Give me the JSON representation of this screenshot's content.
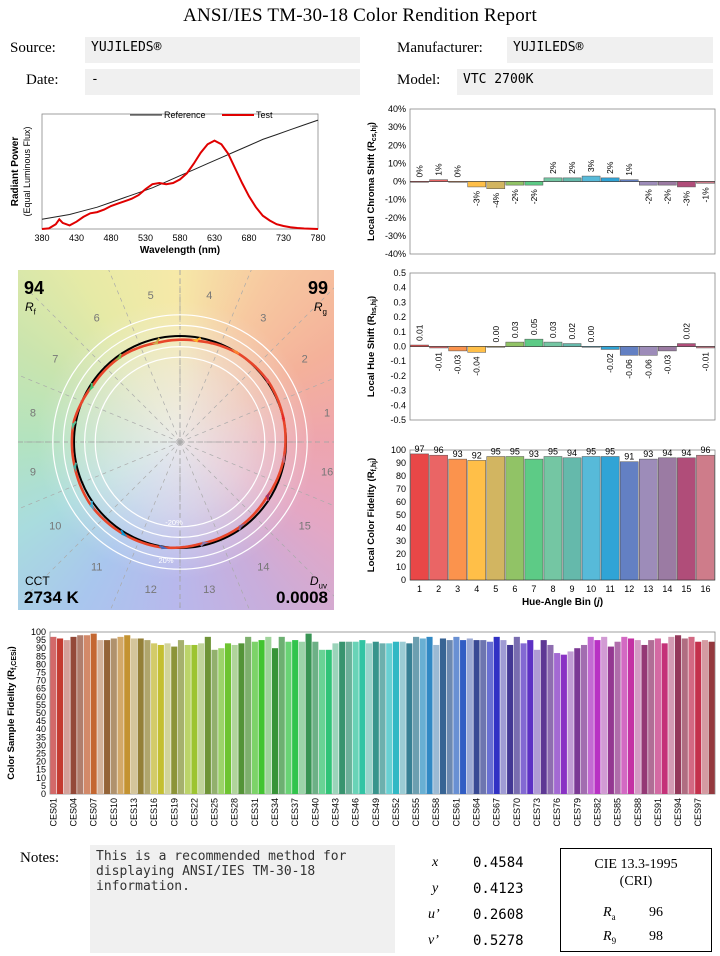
{
  "report": {
    "title": "ANSI/IES TM-30-18 Color Rendition Report",
    "source_label": "Source:",
    "source": "YUJILEDS®",
    "manufacturer_label": "Manufacturer:",
    "manufacturer": "YUJILEDS®",
    "date_label": "Date:",
    "date": "-",
    "model_label": "Model:",
    "model": "VTC 2700K"
  },
  "metrics": {
    "rf": "94",
    "rf_label": "R",
    "rf_sub": "f",
    "rg": "99",
    "rg_label": "R",
    "rg_sub": "g",
    "cct_label": "CCT",
    "cct": "2734 K",
    "duv_label": "D",
    "duv_sub": "uv",
    "duv": "0.0008"
  },
  "colors": {
    "reference": "#222222",
    "test": "#e00000"
  },
  "chart_data": [
    {
      "type": "line",
      "id": "spd",
      "xlabel": "Wavelength (nm)",
      "ylabel": "Radiant Power",
      "ylabel2": "(Equal Luminous Flux)",
      "xlim": [
        380,
        780
      ],
      "xticks": [
        380,
        430,
        480,
        530,
        580,
        630,
        680,
        730,
        780
      ],
      "legend": "top",
      "series": [
        {
          "name": "Reference",
          "x": [
            380,
            400,
            420,
            440,
            460,
            480,
            500,
            520,
            540,
            560,
            580,
            600,
            620,
            640,
            660,
            680,
            700,
            720,
            740,
            760,
            780
          ],
          "y": [
            0.08,
            0.1,
            0.12,
            0.15,
            0.18,
            0.22,
            0.26,
            0.3,
            0.34,
            0.39,
            0.44,
            0.49,
            0.54,
            0.59,
            0.64,
            0.69,
            0.74,
            0.78,
            0.82,
            0.86,
            0.9
          ]
        },
        {
          "name": "Test",
          "x": [
            380,
            390,
            400,
            405,
            410,
            420,
            430,
            440,
            450,
            460,
            470,
            480,
            490,
            500,
            510,
            520,
            530,
            540,
            550,
            560,
            570,
            580,
            590,
            600,
            610,
            620,
            630,
            640,
            650,
            660,
            670,
            680,
            690,
            700,
            710,
            720,
            730,
            740,
            750,
            760,
            770,
            780
          ],
          "y": [
            0.0,
            0.005,
            0.04,
            0.08,
            0.05,
            0.03,
            0.06,
            0.1,
            0.13,
            0.14,
            0.16,
            0.19,
            0.21,
            0.23,
            0.25,
            0.28,
            0.33,
            0.37,
            0.38,
            0.37,
            0.38,
            0.41,
            0.46,
            0.54,
            0.63,
            0.7,
            0.73,
            0.7,
            0.62,
            0.5,
            0.38,
            0.27,
            0.18,
            0.11,
            0.07,
            0.04,
            0.025,
            0.015,
            0.008,
            0.004,
            0.002,
            0.0
          ]
        }
      ]
    },
    {
      "type": "bar",
      "id": "chroma_shift",
      "ylabel": "Local Chroma Shift (R",
      "ylabel_sub": "cs,hj",
      "ylim": [
        -40,
        40
      ],
      "yticks": [
        40,
        30,
        20,
        10,
        0,
        -10,
        -20,
        -30,
        -40
      ],
      "unit": "%",
      "categories": [
        "1",
        "2",
        "3",
        "4",
        "5",
        "6",
        "7",
        "8",
        "9",
        "10",
        "11",
        "12",
        "13",
        "14",
        "15",
        "16"
      ],
      "values": [
        0,
        1,
        0,
        -3,
        -4,
        -2,
        -2,
        2,
        2,
        3,
        2,
        1,
        -2,
        -2,
        -3,
        -1
      ],
      "labels": [
        "0%",
        "1%",
        "0%",
        "-3%",
        "-4%",
        "-2%",
        "-2%",
        "2%",
        "2%",
        "3%",
        "2%",
        "1%",
        "-2%",
        "-2%",
        "-3%",
        "-1%"
      ]
    },
    {
      "type": "bar",
      "id": "hue_shift",
      "ylabel": "Local Hue Shift (R",
      "ylabel_sub": "hs,hj",
      "ylim": [
        -0.5,
        0.5
      ],
      "yticks": [
        0.5,
        0.4,
        0.3,
        0.2,
        0.1,
        0.0,
        -0.1,
        -0.2,
        -0.3,
        -0.4,
        -0.5
      ],
      "categories": [
        "1",
        "2",
        "3",
        "4",
        "5",
        "6",
        "7",
        "8",
        "9",
        "10",
        "11",
        "12",
        "13",
        "14",
        "15",
        "16"
      ],
      "values": [
        0.01,
        -0.01,
        -0.03,
        -0.04,
        0.0,
        0.03,
        0.05,
        0.03,
        0.02,
        0.0,
        -0.02,
        -0.06,
        -0.06,
        -0.03,
        0.02,
        -0.01
      ],
      "labels": [
        "0.01",
        "-0.01",
        "-0.03",
        "-0.04",
        "0.00",
        "0.03",
        "0.05",
        "0.03",
        "0.02",
        "0.00",
        "-0.02",
        "-0.06",
        "-0.06",
        "-0.03",
        "0.02",
        "-0.01"
      ]
    },
    {
      "type": "bar",
      "id": "local_fidelity",
      "ylabel": "Local Color Fidelity (R",
      "ylabel_sub": "f,hj",
      "xlabel": "Hue-Angle Bin (j)",
      "ylim": [
        0,
        100
      ],
      "yticks": [
        100,
        90,
        80,
        70,
        60,
        50,
        40,
        30,
        20,
        10,
        0
      ],
      "categories": [
        "1",
        "2",
        "3",
        "4",
        "5",
        "6",
        "7",
        "8",
        "9",
        "10",
        "11",
        "12",
        "13",
        "14",
        "15",
        "16"
      ],
      "values": [
        97,
        96,
        93,
        92,
        95,
        95,
        93,
        95,
        94,
        95,
        95,
        91,
        93,
        94,
        94,
        96
      ],
      "labels": [
        "97",
        "96",
        "93",
        "92",
        "95",
        "95",
        "93",
        "95",
        "94",
        "95",
        "95",
        "91",
        "93",
        "94",
        "94",
        "96"
      ]
    },
    {
      "type": "bar",
      "id": "sample_fidelity",
      "ylabel": "Color Sample Fidelity (R",
      "ylabel_sub": "f,CESi",
      "ylim": [
        0,
        100
      ],
      "yticks": [
        100,
        95,
        90,
        85,
        80,
        75,
        70,
        65,
        60,
        55,
        50,
        45,
        40,
        35,
        30,
        25,
        20,
        15,
        10,
        5,
        0
      ],
      "tick_labels": [
        "CES01",
        "CES04",
        "CES07",
        "CES10",
        "CES13",
        "CES16",
        "CES19",
        "CES22",
        "CES25",
        "CES28",
        "CES31",
        "CES34",
        "CES37",
        "CES40",
        "CES43",
        "CES46",
        "CES49",
        "CES52",
        "CES55",
        "CES58",
        "CES61",
        "CES64",
        "CES67",
        "CES70",
        "CES73",
        "CES76",
        "CES79",
        "CES82",
        "CES85",
        "CES88",
        "CES91",
        "CES94",
        "CES97"
      ],
      "values": [
        97,
        96,
        95,
        97,
        98,
        98,
        99,
        95,
        95,
        96,
        97,
        98,
        96,
        96,
        95,
        93,
        92,
        93,
        91,
        95,
        92,
        92,
        93,
        97,
        89,
        90,
        93,
        92,
        93,
        97,
        94,
        95,
        97,
        90,
        97,
        94,
        95,
        94,
        99,
        94,
        89,
        89,
        93,
        94,
        94,
        94,
        95,
        93,
        94,
        93,
        93,
        94,
        94,
        93,
        97,
        96,
        97,
        92,
        96,
        95,
        97,
        95,
        96,
        95,
        95,
        94,
        97,
        95,
        92,
        97,
        93,
        95,
        89,
        95,
        92,
        87,
        86,
        88,
        90,
        92,
        97,
        95,
        97,
        91,
        94,
        97,
        96,
        95,
        92,
        95,
        96,
        93,
        97,
        98,
        96,
        97,
        94,
        95,
        94
      ]
    },
    {
      "type": "vector-graphic",
      "id": "cvg",
      "bins": [
        "1",
        "2",
        "3",
        "4",
        "5",
        "6",
        "7",
        "8",
        "9",
        "10",
        "11",
        "12",
        "13",
        "14",
        "15",
        "16"
      ],
      "ring_labels": [
        "-20%",
        "20%"
      ],
      "reference_radius": 1.0,
      "test_radius": [
        1.0,
        1.01,
        1.0,
        0.97,
        0.96,
        0.98,
        0.98,
        1.02,
        1.02,
        1.03,
        1.02,
        1.01,
        0.98,
        0.98,
        0.97,
        0.99
      ]
    }
  ],
  "notes": {
    "label": "Notes:",
    "text": "This is a recommended method for displaying ANSI/IES TM-30-18 information."
  },
  "chromaticity": {
    "x_label": "x",
    "x": "0.4584",
    "y_label": "y",
    "y": "0.4123",
    "u_label": "u’",
    "u": "0.2608",
    "v_label": "v’",
    "v": "0.5278"
  },
  "cri": {
    "title": "CIE 13.3-1995",
    "subtitle": "(CRI)",
    "ra_label": "R",
    "ra_sub": "a",
    "ra": "96",
    "r9_label": "R",
    "r9_sub": "9",
    "r9": "98"
  }
}
